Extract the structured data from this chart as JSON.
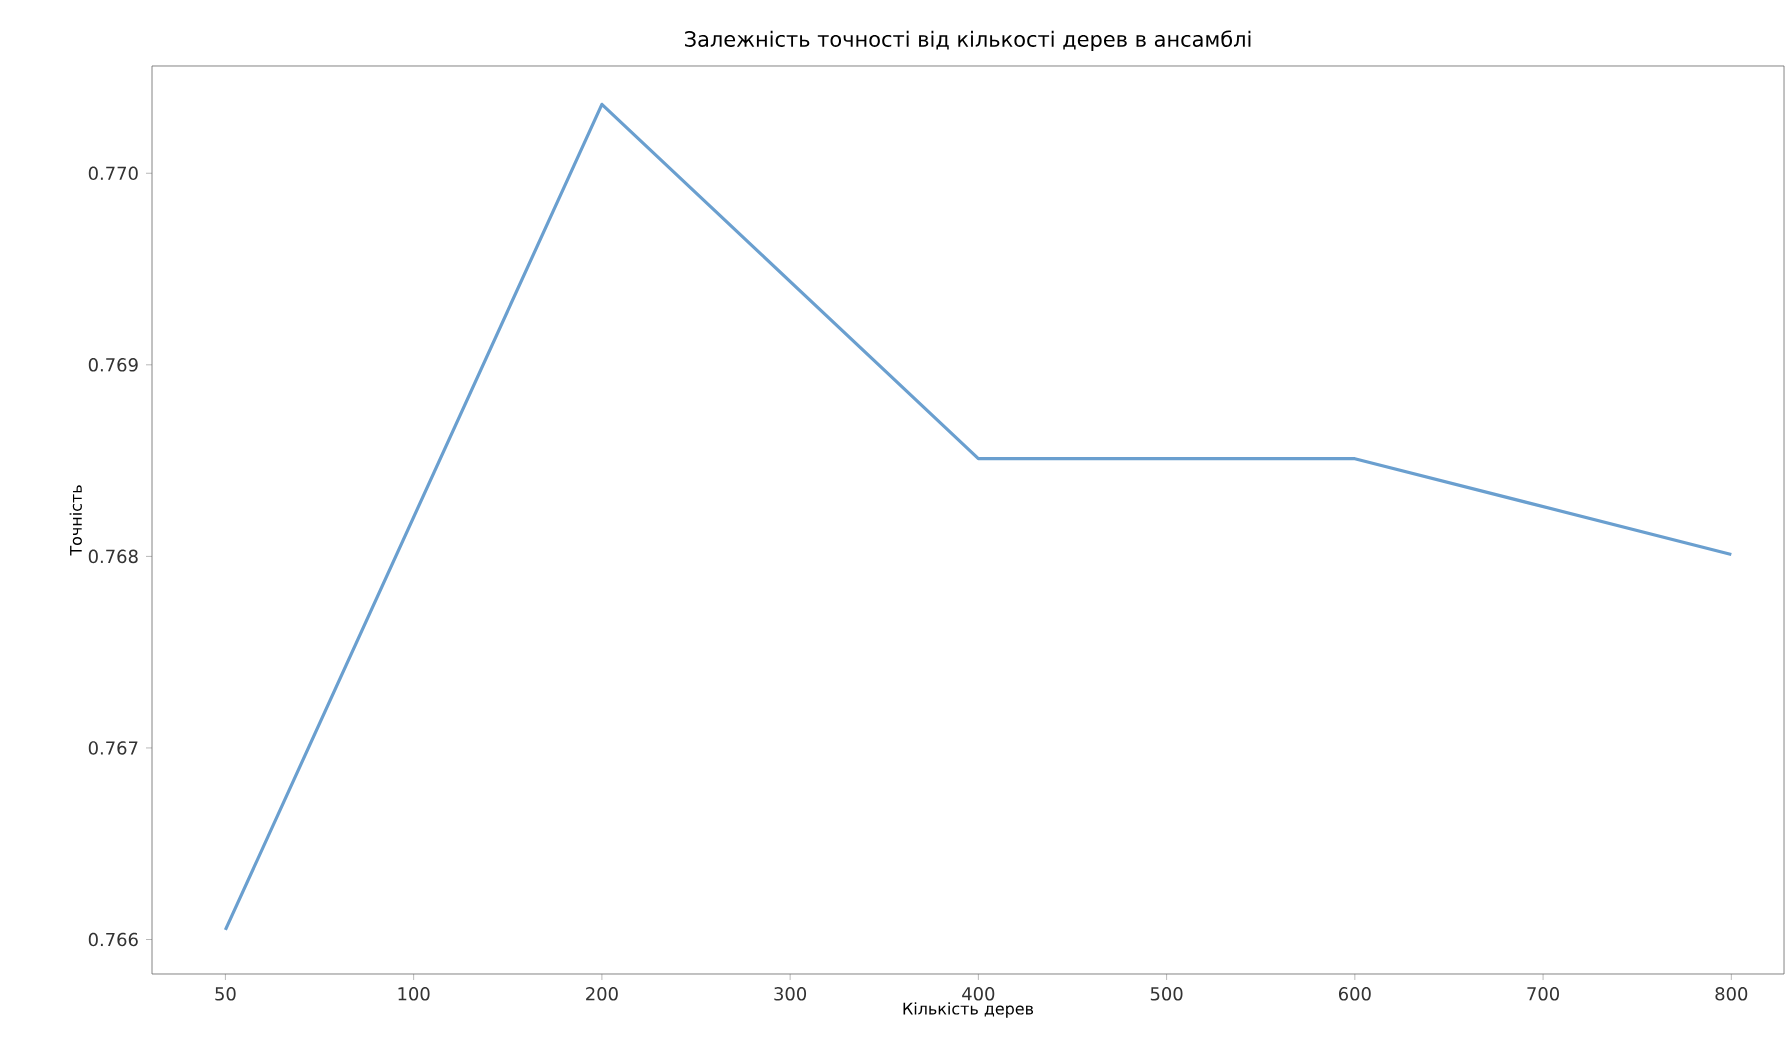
{
  "chart_data": {
    "type": "line",
    "title": "Залежність точності від кількості дерев в ансамблі",
    "xlabel": "Кількість дерев",
    "ylabel": "Точність",
    "categories": [
      "50",
      "100",
      "200",
      "300",
      "400",
      "500",
      "600",
      "700",
      "800"
    ],
    "series": [
      {
        "color": "#6a9fcf",
        "x": [
          "50",
          "200",
          "400",
          "600",
          "800"
        ],
        "values": [
          0.76605,
          0.77036,
          0.76851,
          0.76851,
          0.76801
        ]
      }
    ],
    "ylim": [
      0.76582,
      0.77056
    ],
    "yticks": [
      0.766,
      0.767,
      0.768,
      0.769,
      {
        "value": 0.77,
        "label": "0.770"
      }
    ],
    "grid": false,
    "marker": "none",
    "line_style": "solid"
  }
}
